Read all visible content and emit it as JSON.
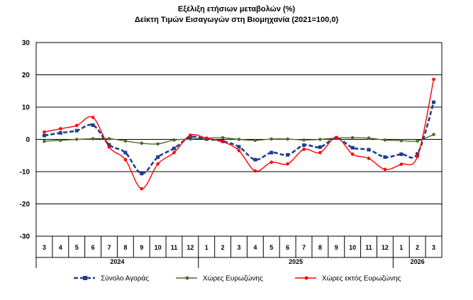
{
  "title": {
    "line1": "Εξέλιξη ετήσιων μεταβολών (%)",
    "line2": "Δείκτη Τιμών Εισαγωγών στη Βιομηχανία (2021=100,0)"
  },
  "chart_data": {
    "type": "line",
    "title": "Εξέλιξη ετήσιων μεταβολών (%) Δείκτη Τιμών Εισαγωγών στη Βιομηχανία (2021=100,0)",
    "categories": [
      "3",
      "4",
      "5",
      "6",
      "7",
      "8",
      "9",
      "10",
      "11",
      "12",
      "1",
      "2",
      "3",
      "4",
      "5",
      "6",
      "7",
      "8",
      "9",
      "10",
      "11",
      "12",
      "1",
      "2",
      "3"
    ],
    "years": [
      {
        "label": "2024",
        "first": 0,
        "last": 9
      },
      {
        "label": "2025",
        "first": 10,
        "last": 21
      },
      {
        "label": "2026",
        "first": 22,
        "last": 24
      }
    ],
    "ylim": [
      -30,
      30
    ],
    "yticks": [
      -30,
      -20,
      -10,
      0,
      10,
      20,
      30
    ],
    "grid": true,
    "legend_position": "bottom",
    "series": [
      {
        "name": "Σύνολο Αγοράς",
        "color": "#1f3f8f",
        "style": "dashed",
        "marker": "square",
        "values": [
          1.2,
          2.0,
          2.7,
          4.4,
          -1.7,
          -4.1,
          -10.6,
          -5.5,
          -2.8,
          0.7,
          0.1,
          -0.6,
          -2.3,
          -6.3,
          -4.1,
          -4.8,
          -1.8,
          -2.4,
          0.4,
          -2.6,
          -3.2,
          -5.5,
          -4.6,
          -4.5,
          11.5
        ]
      },
      {
        "name": "Χώρες Ευρωζώνης",
        "color": "#4d6b26",
        "style": "solid",
        "marker": "circle",
        "values": [
          -0.6,
          -0.3,
          0.0,
          0.2,
          0.2,
          -0.5,
          -1.2,
          -1.4,
          -0.2,
          0.1,
          0.4,
          0.5,
          0.0,
          -0.3,
          0.1,
          0.1,
          -0.2,
          0.0,
          0.4,
          0.5,
          0.4,
          -0.2,
          -0.4,
          -0.5,
          1.5
        ]
      },
      {
        "name": "Χώρες εκτός Ευρωζώνης",
        "color": "#ff0000",
        "style": "solid",
        "marker": "circle",
        "values": [
          2.3,
          3.3,
          4.3,
          6.8,
          -2.4,
          -6.3,
          -15.3,
          -7.6,
          -4.1,
          1.3,
          0.3,
          -0.7,
          -3.5,
          -9.8,
          -7.1,
          -7.6,
          -3.1,
          -4.1,
          0.6,
          -4.6,
          -5.9,
          -9.3,
          -7.7,
          -5.3,
          18.6
        ]
      }
    ]
  }
}
